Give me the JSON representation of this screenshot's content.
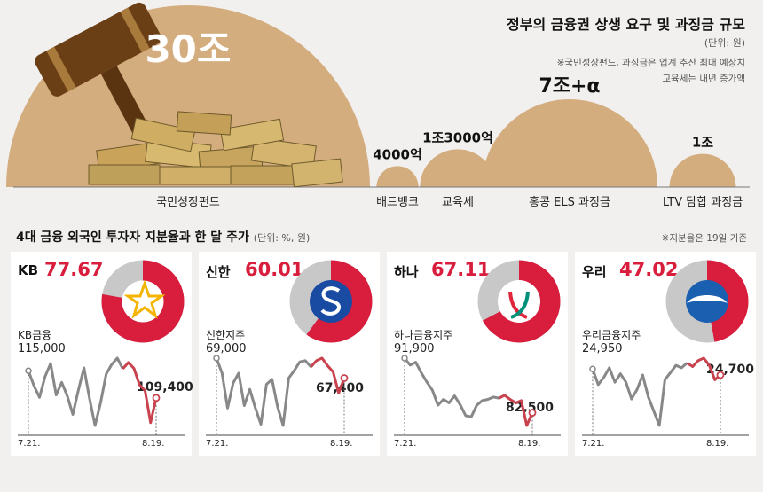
{
  "chart_data": [
    {
      "type": "bubble",
      "title": "정부의 금융권 상생 요구 및 과징금 규모",
      "unit": "(단위: 원)",
      "notes": [
        "※국민성장펀드, 과징금은 업계 추산 최대 예상치",
        "교육세는 내년 증가액"
      ],
      "items": [
        {
          "name": "국민성장펀드",
          "label": "30조",
          "value": 300000
        },
        {
          "name": "배드뱅크",
          "label": "4000억",
          "value": 4000
        },
        {
          "name": "교육세",
          "label": "1조3000억",
          "value": 13000
        },
        {
          "name": "홍콩 ELS 과징금",
          "label": "7조+α",
          "value": 70000
        },
        {
          "name": "LTV 담합 과징금",
          "label": "1조",
          "value": 10000
        }
      ]
    },
    {
      "type": "donut+line",
      "title": "4대 금융 외국인 투자자 지분율과 한 달 주가",
      "unit": "(단위: %, 원)",
      "note": "※지분율은 19일 기준",
      "colors": {
        "share": "#d81d3d",
        "rest": "#c8c8c8",
        "line": "#888888",
        "line_end": "#c9434f"
      },
      "groups": [
        {
          "bank": "KB",
          "share": 77.67,
          "share_label": "77.67",
          "company": "KB금융",
          "start_label": "115,000",
          "end_label": "109,400",
          "date_start": "7.21.",
          "date_end": "8.19.",
          "logo": "kb-star-logo",
          "prices": [
            115000,
            111900,
            109500,
            113800,
            116500,
            110000,
            112600,
            109800,
            106000,
            111000,
            115600,
            109300,
            103700,
            108400,
            114300,
            116300,
            117600,
            115400,
            116700,
            115500,
            112100,
            110900,
            104300,
            109400
          ]
        },
        {
          "bank": "신한",
          "share": 60.01,
          "share_label": "60.01",
          "company": "신한지주",
          "start_label": "69,000",
          "end_label": "67,400",
          "date_start": "7.21.",
          "date_end": "8.19.",
          "logo": "shinhan-s-logo",
          "prices": [
            69000,
            67800,
            65000,
            67000,
            67800,
            65200,
            66500,
            65000,
            63700,
            66900,
            67300,
            65100,
            63600,
            67400,
            68000,
            68700,
            68800,
            68300,
            68800,
            69000,
            68400,
            67900,
            66200,
            67400
          ]
        },
        {
          "bank": "하나",
          "share": 67.11,
          "share_label": "67.11",
          "company": "하나금융지주",
          "start_label": "91,900",
          "end_label": "82,500",
          "date_start": "7.21.",
          "date_end": "8.19.",
          "logo": "hana-logo",
          "prices": [
            91900,
            90700,
            91200,
            89400,
            87800,
            86400,
            83800,
            84800,
            84200,
            85400,
            83900,
            82000,
            81800,
            83800,
            84600,
            84800,
            85200,
            85000,
            85500,
            84800,
            84200,
            84600,
            80300,
            82500
          ]
        },
        {
          "bank": "우리",
          "share": 47.02,
          "share_label": "47.02",
          "company": "우리금융지주",
          "start_label": "24,950",
          "end_label": "24,700",
          "date_start": "7.21.",
          "date_end": "8.19.",
          "logo": "woori-logo",
          "prices": [
            24950,
            24300,
            24600,
            25000,
            24400,
            24750,
            24400,
            23700,
            24100,
            24700,
            23800,
            23200,
            22600,
            24500,
            24800,
            25100,
            25000,
            25200,
            25050,
            25300,
            25400,
            25100,
            24500,
            24700
          ]
        }
      ]
    }
  ]
}
